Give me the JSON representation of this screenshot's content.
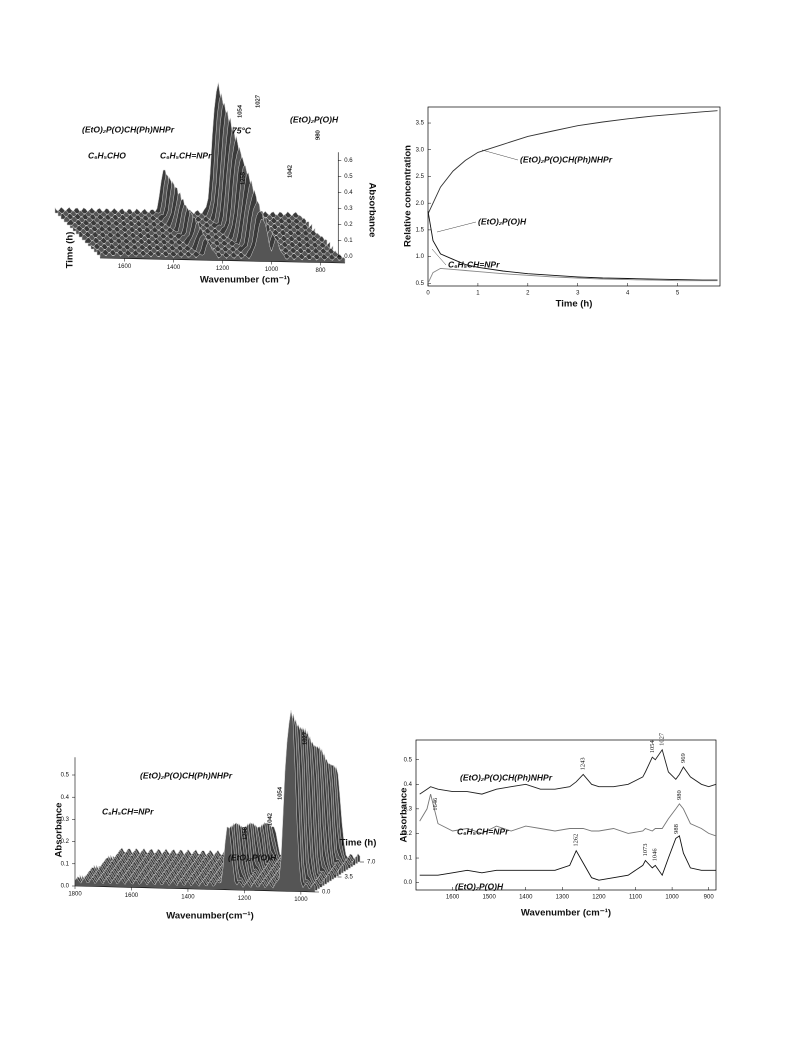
{
  "chart_data": [
    {
      "type": "waterfall3d",
      "xlabel": "Wavenumber (cm⁻¹)",
      "ylabel": "Time (h)",
      "zlabel": "Absorbance",
      "xlim": [
        1700,
        700
      ],
      "xticks": [
        1600,
        1400,
        1200,
        1000,
        800
      ],
      "zlim": [
        0,
        0.65
      ],
      "zticks": [
        {
          "value": 0,
          "label": "0.0"
        },
        0.1,
        0.2,
        0.3,
        0.4,
        0.5,
        0.6
      ],
      "labels": [
        "(EtO)₂P(O)CH(Ph)NHPr",
        "C₆H₅CHO",
        "C₆H₅CH=NPr",
        "75°C",
        "(EtO)₂P(O)H"
      ],
      "peak_labels": [
        1054,
        1027,
        980,
        1042,
        1255
      ]
    },
    {
      "type": "line",
      "xlabel": "Time (h)",
      "ylabel": "Relative concentration",
      "xlim": [
        0,
        5.85
      ],
      "xticks": [
        0,
        1,
        2,
        3,
        4,
        5
      ],
      "ylim": [
        0.45,
        3.8
      ],
      "yticks": [
        0.5,
        {
          "value": 1,
          "label": "1.0"
        },
        1.5,
        {
          "value": 2,
          "label": "2.0"
        },
        2.5,
        {
          "value": 3,
          "label": "3.0"
        },
        3.5
      ],
      "x": [
        0,
        0.1,
        0.25,
        0.5,
        0.75,
        1,
        1.5,
        2,
        2.5,
        3,
        3.5,
        4,
        4.5,
        5,
        5.5,
        5.8
      ],
      "series": [
        {
          "name": "(EtO)₂P(O)CH(Ph)NHPr",
          "color": "#333333",
          "values": [
            1.8,
            2.0,
            2.3,
            2.6,
            2.8,
            2.95,
            3.1,
            3.25,
            3.35,
            3.45,
            3.52,
            3.58,
            3.63,
            3.67,
            3.71,
            3.73
          ]
        },
        {
          "name": "(EtO)₂P(O)H",
          "color": "#111111",
          "values": [
            1.85,
            1.3,
            1.05,
            0.95,
            0.85,
            0.8,
            0.73,
            0.68,
            0.65,
            0.62,
            0.6,
            0.59,
            0.58,
            0.57,
            0.56,
            0.56
          ]
        },
        {
          "name": "C₆H₅CH=NPr",
          "color": "#888888",
          "values": [
            0.5,
            0.7,
            0.78,
            0.76,
            0.74,
            0.72,
            0.68,
            0.65,
            0.62,
            0.6,
            0.58,
            0.57,
            0.56,
            0.55,
            0.55,
            0.55
          ]
        }
      ]
    },
    {
      "type": "waterfall3d",
      "xlabel": "Wavenumber(cm⁻¹)",
      "ylabel": "Time (h)",
      "zlabel": "Absorbance",
      "xlim": [
        1800,
        950
      ],
      "xticks": [
        1800,
        1600,
        1400,
        1200,
        1000
      ],
      "ylim": [
        0,
        7
      ],
      "yticks": [
        {
          "value": 0,
          "label": "0.0"
        },
        3.5,
        {
          "value": 7,
          "label": "7.0"
        }
      ],
      "zlim": [
        0,
        0.58
      ],
      "zticks": [
        {
          "value": 0,
          "label": "0.0"
        },
        0.1,
        0.2,
        0.3,
        0.4,
        0.5
      ],
      "labels": [
        "(EtO)₂P(O)CH(Ph)NHPr",
        "C₆H₅CH=NPr",
        "(EtO)₂P(O)H"
      ],
      "peak_labels": [
        1027,
        1054,
        1042,
        1258
      ]
    },
    {
      "type": "line",
      "xlabel": "Wavenumber (cm⁻¹)",
      "ylabel": "Absorbance",
      "xlim": [
        1700,
        880
      ],
      "xticks": [
        1600,
        1500,
        1400,
        1300,
        1200,
        1100,
        1000,
        900
      ],
      "ylim": [
        -0.03,
        0.58
      ],
      "yticks": [
        {
          "value": 0,
          "label": "0.0"
        },
        0.1,
        0.2,
        0.3,
        0.4,
        0.5
      ],
      "x": [
        1690,
        1670,
        1660,
        1640,
        1600,
        1560,
        1520,
        1480,
        1440,
        1400,
        1360,
        1320,
        1280,
        1262,
        1243,
        1220,
        1200,
        1160,
        1120,
        1080,
        1073,
        1054,
        1046,
        1027,
        1010,
        990,
        980,
        969,
        950,
        920,
        900,
        880
      ],
      "series": [
        {
          "name": "(EtO)₂P(O)CH(Ph)NHPr",
          "color": "#222222",
          "peak_labels": [
            1243,
            1054,
            1027,
            969
          ],
          "values": [
            0.36,
            0.38,
            0.39,
            0.38,
            0.37,
            0.37,
            0.36,
            0.38,
            0.39,
            0.4,
            0.38,
            0.38,
            0.39,
            0.41,
            0.44,
            0.4,
            0.39,
            0.39,
            0.4,
            0.43,
            0.45,
            0.51,
            0.5,
            0.54,
            0.45,
            0.42,
            0.44,
            0.47,
            0.43,
            0.4,
            0.39,
            0.4
          ]
        },
        {
          "name": "C₆H₅CH=NPr",
          "color": "#777777",
          "peak_labels": [
            1646,
            980
          ],
          "values": [
            0.25,
            0.3,
            0.36,
            0.24,
            0.21,
            0.22,
            0.2,
            0.23,
            0.21,
            0.23,
            0.22,
            0.21,
            0.22,
            0.22,
            0.22,
            0.21,
            0.21,
            0.22,
            0.2,
            0.21,
            0.22,
            0.21,
            0.22,
            0.22,
            0.26,
            0.3,
            0.32,
            0.3,
            0.24,
            0.22,
            0.2,
            0.19
          ]
        },
        {
          "name": "(EtO)₂P(O)H",
          "color": "#111111",
          "peak_labels": [
            1262,
            1073,
            1046,
            988
          ],
          "values": [
            0.03,
            0.03,
            0.03,
            0.03,
            0.04,
            0.05,
            0.04,
            0.05,
            0.05,
            0.05,
            0.05,
            0.05,
            0.07,
            0.13,
            0.08,
            0.02,
            0.01,
            0.02,
            0.03,
            0.07,
            0.09,
            0.06,
            0.07,
            0.03,
            0.1,
            0.18,
            0.19,
            0.12,
            0.06,
            0.05,
            0.05,
            0.05
          ]
        }
      ]
    }
  ]
}
